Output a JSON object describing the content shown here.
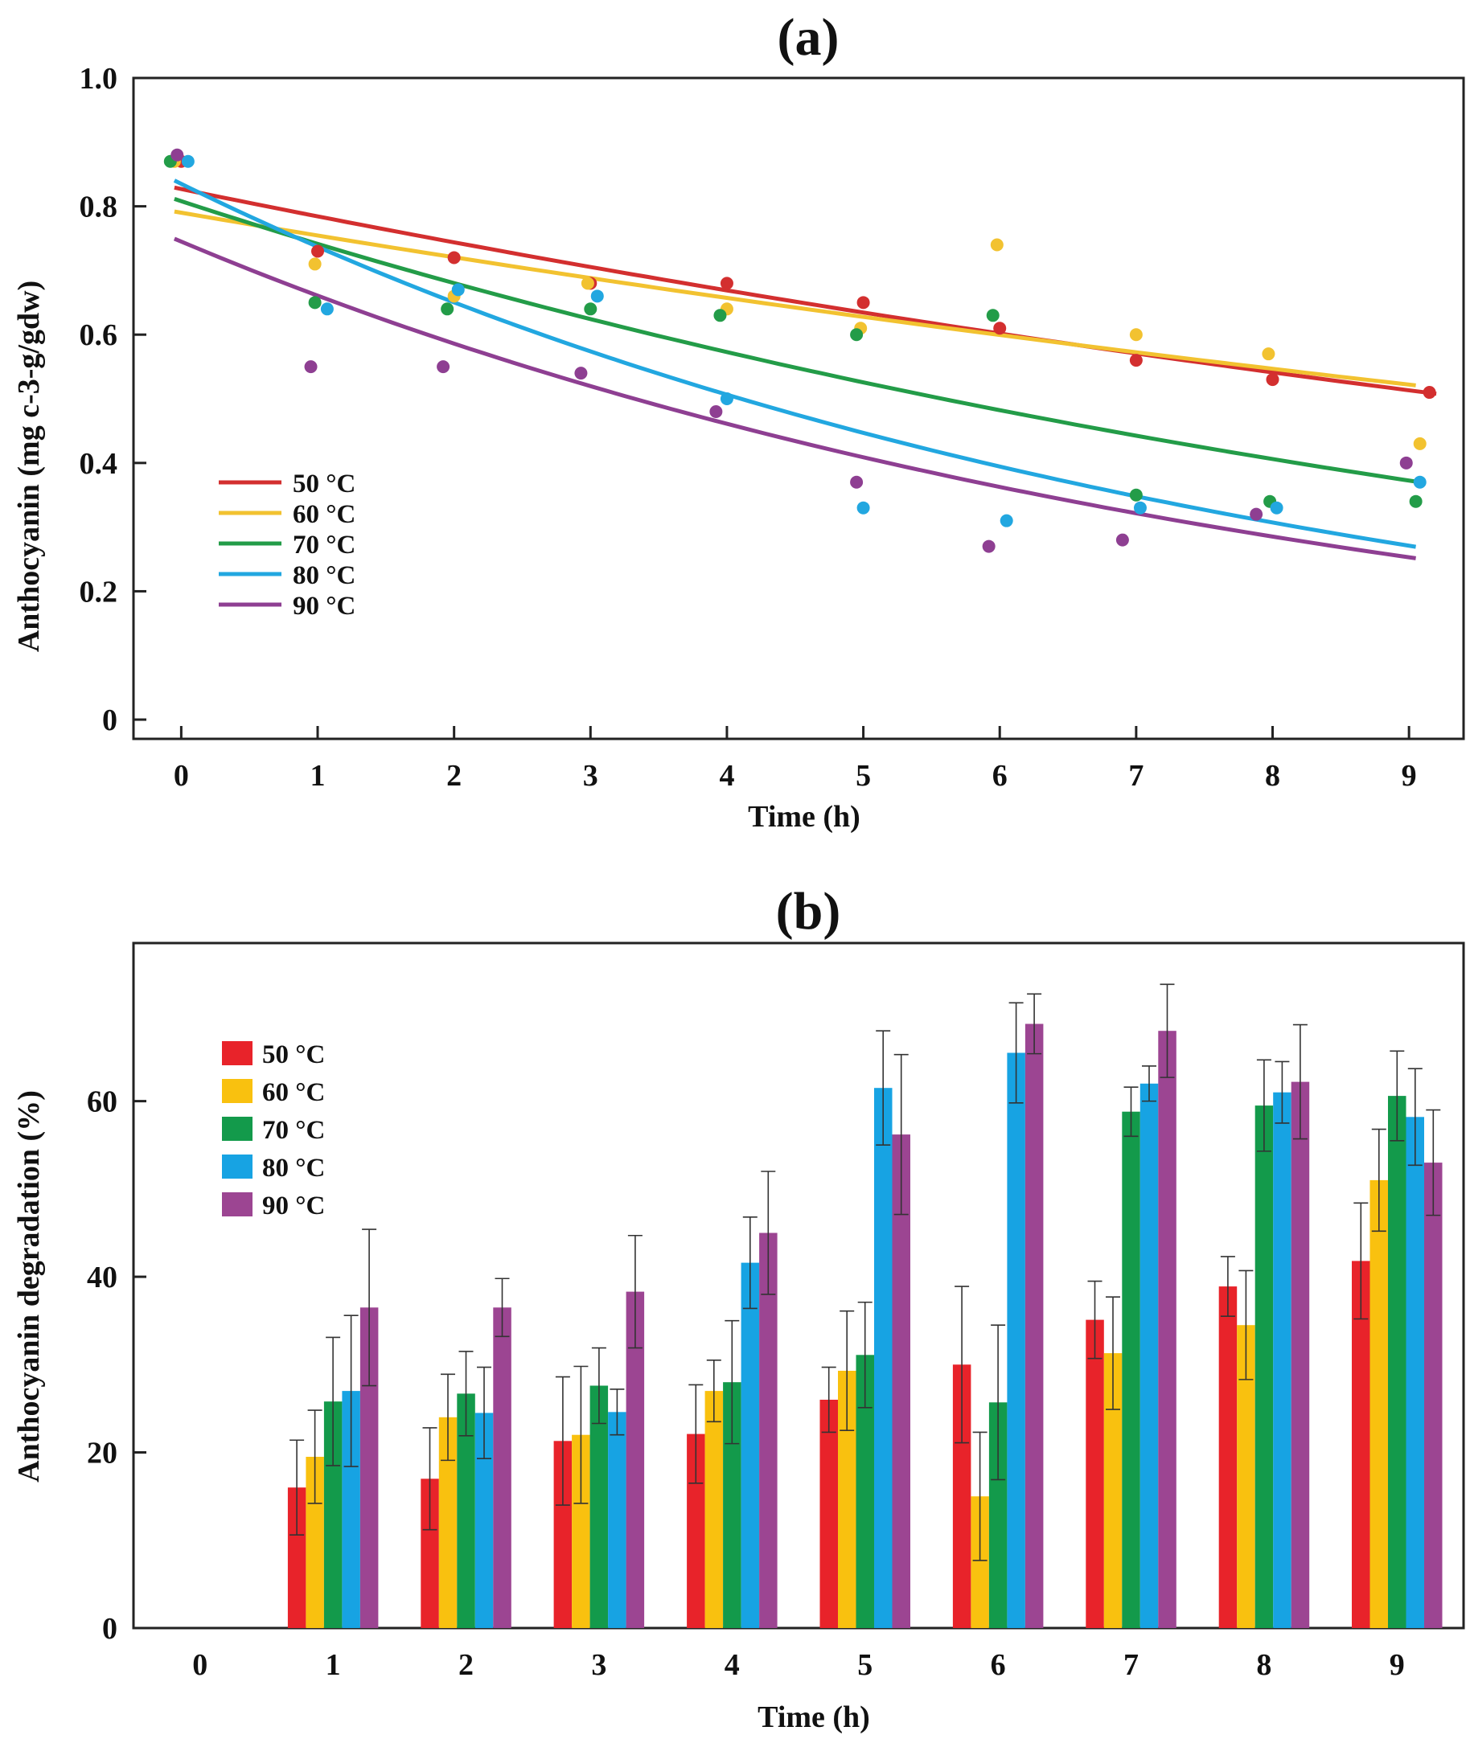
{
  "chart_data": [
    {
      "type": "scatter",
      "title": "(a)",
      "xlabel": "Time (h)",
      "ylabel": "Anthocyanin (mg c-3-g/gdw)",
      "xlim": [
        -0.35,
        9.4
      ],
      "ylim": [
        -0.03,
        1.0
      ],
      "xticks": [
        0,
        1,
        2,
        3,
        4,
        5,
        6,
        7,
        8,
        9
      ],
      "yticks": [
        0,
        0.2,
        0.4,
        0.6,
        0.8,
        1.0
      ],
      "ytick_labels": [
        "0",
        "0.2",
        "0.4",
        "0.6",
        "0.8",
        "1.0"
      ],
      "grid": false,
      "legend_position": "lower-left",
      "series": [
        {
          "name": "50 °C",
          "color": "#d32f2f",
          "x": [
            0,
            1,
            2,
            3,
            4,
            5,
            6,
            7,
            8,
            9.15
          ],
          "y": [
            0.87,
            0.73,
            0.72,
            0.68,
            0.68,
            0.65,
            0.61,
            0.56,
            0.53,
            0.51
          ],
          "fit": {
            "type": "exponential",
            "a": 0.827,
            "k": 0.053,
            "x_range": [
              -0.05,
              9.2
            ]
          }
        },
        {
          "name": "60 °C",
          "color": "#f2c230",
          "x": [
            -0.05,
            0.98,
            2.0,
            2.98,
            4.0,
            4.98,
            5.98,
            7.0,
            7.97,
            9.08
          ],
          "y": [
            0.87,
            0.71,
            0.66,
            0.68,
            0.64,
            0.61,
            0.74,
            0.6,
            0.57,
            0.43
          ],
          "fit": {
            "type": "exponential",
            "a": 0.79,
            "k": 0.046,
            "x_range": [
              -0.05,
              9.05
            ]
          }
        },
        {
          "name": "70 °C",
          "color": "#239c48",
          "x": [
            -0.08,
            0.98,
            1.95,
            3.0,
            3.95,
            4.95,
            5.95,
            7.0,
            7.98,
            9.05
          ],
          "y": [
            0.87,
            0.65,
            0.64,
            0.64,
            0.63,
            0.6,
            0.63,
            0.35,
            0.34,
            0.34
          ],
          "fit": {
            "type": "exponential",
            "a": 0.808,
            "k": 0.086,
            "x_range": [
              -0.05,
              9.05
            ]
          }
        },
        {
          "name": "80 °C",
          "color": "#22a7e0",
          "x": [
            0.05,
            1.07,
            2.03,
            3.05,
            4.0,
            5.0,
            6.05,
            7.03,
            8.03,
            9.08
          ],
          "y": [
            0.87,
            0.64,
            0.67,
            0.66,
            0.5,
            0.33,
            0.31,
            0.33,
            0.33,
            0.37
          ],
          "fit": {
            "type": "exponential",
            "a": 0.835,
            "k": 0.125,
            "x_range": [
              -0.05,
              9.05
            ]
          }
        },
        {
          "name": "90 °C",
          "color": "#8e3f92",
          "x": [
            -0.03,
            0.95,
            1.92,
            2.93,
            3.92,
            4.95,
            5.92,
            6.9,
            7.88,
            8.98
          ],
          "y": [
            0.88,
            0.55,
            0.55,
            0.54,
            0.48,
            0.37,
            0.27,
            0.28,
            0.32,
            0.4
          ],
          "fit": {
            "type": "exponential",
            "a": 0.745,
            "k": 0.12,
            "x_range": [
              -0.05,
              9.05
            ]
          }
        }
      ]
    },
    {
      "type": "bar",
      "title": "(b)",
      "xlabel": "Time (h)",
      "ylabel": "Anthocyanin degradation (%)",
      "categories": [
        "0",
        "1",
        "2",
        "3",
        "4",
        "5",
        "6",
        "7",
        "8",
        "9"
      ],
      "ylim": [
        0,
        78
      ],
      "yticks": [
        0,
        20,
        40,
        60
      ],
      "grid": false,
      "legend_position": "top-left",
      "series": [
        {
          "name": "50 °C",
          "color": "#e8232a",
          "values": [
            0,
            16,
            17,
            21.3,
            22.1,
            26,
            30,
            35.1,
            38.9,
            41.8
          ],
          "errors": [
            0,
            5.4,
            5.8,
            7.3,
            5.6,
            3.7,
            8.9,
            4.4,
            3.4,
            6.6
          ]
        },
        {
          "name": "60 °C",
          "color": "#f9c10f",
          "values": [
            0,
            19.5,
            24,
            22,
            27,
            29.3,
            15,
            31.3,
            34.5,
            51
          ],
          "errors": [
            0,
            5.3,
            4.9,
            7.8,
            3.5,
            6.8,
            7.3,
            6.4,
            6.2,
            5.8
          ]
        },
        {
          "name": "70 °C",
          "color": "#139a4b",
          "values": [
            0,
            25.8,
            26.7,
            27.6,
            28,
            31.1,
            25.7,
            58.8,
            59.5,
            60.6
          ],
          "errors": [
            0,
            7.3,
            4.8,
            4.3,
            7,
            6,
            8.8,
            2.8,
            5.2,
            5.1
          ]
        },
        {
          "name": "80 °C",
          "color": "#17a3e3",
          "values": [
            0,
            27,
            24.5,
            24.6,
            41.6,
            61.5,
            65.5,
            62,
            61,
            58.2
          ],
          "errors": [
            0,
            8.6,
            5.2,
            2.6,
            5.2,
            6.5,
            5.7,
            2.0,
            3.5,
            5.5
          ]
        },
        {
          "name": "90 °C",
          "color": "#9c4592",
          "values": [
            0,
            36.5,
            36.5,
            38.3,
            45,
            56.2,
            68.8,
            68,
            62.2,
            53
          ],
          "errors": [
            0,
            8.9,
            3.3,
            6.4,
            7,
            9.1,
            3.4,
            5.3,
            6.5,
            6
          ]
        }
      ]
    }
  ]
}
